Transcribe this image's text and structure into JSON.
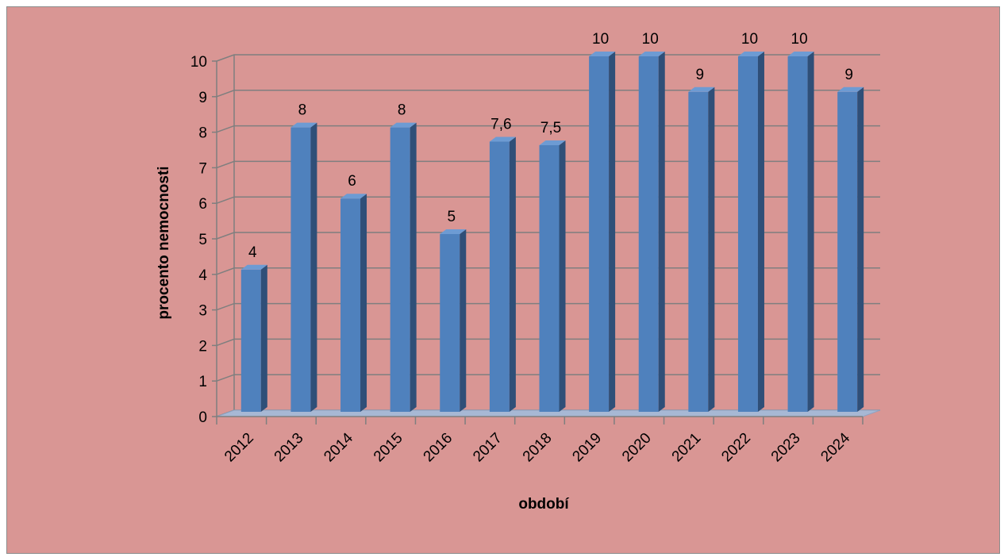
{
  "chart_data": {
    "type": "bar",
    "style": "3d-column",
    "categories": [
      "2012",
      "2013",
      "2014",
      "2015",
      "2016",
      "2017",
      "2018",
      "2019",
      "2020",
      "2021",
      "2022",
      "2023",
      "2024"
    ],
    "values": [
      4,
      8,
      6,
      8,
      5,
      7.6,
      7.5,
      10,
      10,
      9,
      10,
      10,
      9
    ],
    "data_labels": [
      "4",
      "8",
      "6",
      "8",
      "5",
      "7,6",
      "7,5",
      "10",
      "10",
      "9",
      "10",
      "10",
      "9"
    ],
    "ytick_labels": [
      "0",
      "1",
      "2",
      "3",
      "4",
      "5",
      "6",
      "7",
      "8",
      "9",
      "10"
    ],
    "xlabel": "období",
    "ylabel": "procento nemocnosti",
    "ylim": [
      0,
      10
    ],
    "grid": true,
    "legend": "none",
    "colors": {
      "background": "#d99694",
      "bar_front": "#4f81bd",
      "bar_side": "#2f4f78",
      "bar_top": "#6d9bd3",
      "floor": "#a7b8d4",
      "grid": "#7f7f7f"
    }
  }
}
